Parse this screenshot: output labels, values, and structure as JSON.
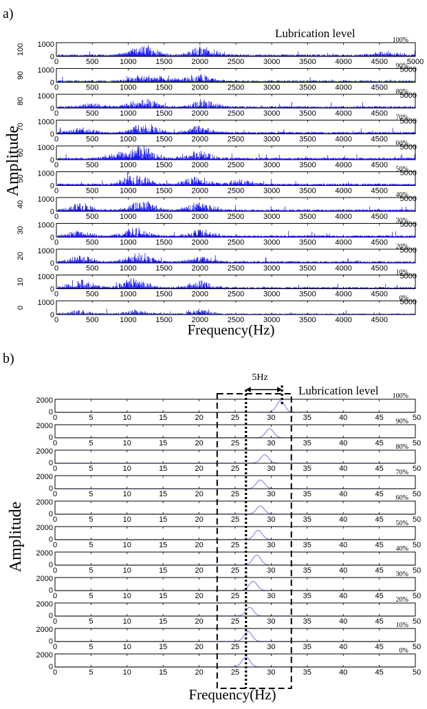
{
  "figure": {
    "panels": [
      {
        "label": "a)",
        "ylabel": "Amplitude",
        "xlabel": "Frequency(Hz)",
        "legend_title": "Lubrication level",
        "xlim": [
          0,
          5000
        ],
        "ylim": [
          0,
          1000
        ],
        "x_ticks": [
          0,
          500,
          1000,
          1500,
          2000,
          2500,
          3000,
          3500,
          4000,
          4500,
          5000
        ],
        "y_ticks": [
          0,
          1000
        ],
        "levels": [
          {
            "side_label": "100",
            "level_label": "100%"
          },
          {
            "side_label": "90",
            "level_label": "90%"
          },
          {
            "side_label": "80",
            "level_label": "80%"
          },
          {
            "side_label": "70",
            "level_label": "70%"
          },
          {
            "side_label": "60",
            "level_label": "60%"
          },
          {
            "side_label": "50",
            "level_label": "50%"
          },
          {
            "side_label": "40",
            "level_label": "40%"
          },
          {
            "side_label": "30",
            "level_label": "30%"
          },
          {
            "side_label": "20",
            "level_label": "20%"
          },
          {
            "side_label": "10",
            "level_label": "10%"
          },
          {
            "side_label": "0",
            "level_label": "0%"
          }
        ]
      },
      {
        "label": "b)",
        "ylabel": "Amplitude",
        "xlabel": "Frequency(Hz)",
        "legend_title": "Lubrication level",
        "annotation": "5Hz",
        "xlim": [
          0,
          50
        ],
        "ylim": [
          0,
          2000
        ],
        "x_ticks": [
          0,
          5,
          10,
          15,
          20,
          25,
          30,
          35,
          40,
          45,
          50
        ],
        "y_ticks": [
          0,
          2000
        ],
        "box_x_range": [
          22.5,
          32.8
        ],
        "dotted_line_x": 26.5,
        "arrow_x_range": [
          26.5,
          31.5
        ],
        "levels": [
          {
            "level_label": "100%"
          },
          {
            "level_label": "90%"
          },
          {
            "level_label": "80%"
          },
          {
            "level_label": "70%"
          },
          {
            "level_label": "60%"
          },
          {
            "level_label": "50%"
          },
          {
            "level_label": "40%"
          },
          {
            "level_label": "30%"
          },
          {
            "level_label": "20%"
          },
          {
            "level_label": "10%"
          },
          {
            "level_label": "0%"
          }
        ]
      }
    ]
  },
  "colors": {
    "spectrum": "#1a1aff",
    "peak": "#8a8ae8",
    "axes": "#000000",
    "annotation": "#000000"
  },
  "chart_data": [
    {
      "type": "bar",
      "title": "",
      "xlabel": "Frequency(Hz)",
      "ylabel": "Amplitude",
      "xlim": [
        0,
        5000
      ],
      "ylim": [
        0,
        1000
      ],
      "grid": false,
      "series": [
        {
          "name": "100%",
          "bands": [
            {
              "x": 1250,
              "value": 650
            },
            {
              "x": 2050,
              "value": 720
            },
            {
              "x": 1150,
              "value": 350
            },
            {
              "x": 4600,
              "value": 300
            }
          ],
          "baseline": 150
        },
        {
          "name": "90%",
          "bands": [
            {
              "x": 1200,
              "value": 450
            },
            {
              "x": 2000,
              "value": 500
            },
            {
              "x": 1500,
              "value": 300
            }
          ],
          "baseline": 140
        },
        {
          "name": "80%",
          "bands": [
            {
              "x": 1200,
              "value": 700
            },
            {
              "x": 2050,
              "value": 550
            },
            {
              "x": 500,
              "value": 300
            }
          ],
          "baseline": 140
        },
        {
          "name": "70%",
          "bands": [
            {
              "x": 1250,
              "value": 750
            },
            {
              "x": 2000,
              "value": 500
            },
            {
              "x": 350,
              "value": 350
            }
          ],
          "baseline": 150
        },
        {
          "name": "60%",
          "bands": [
            {
              "x": 1200,
              "value": 950
            },
            {
              "x": 2000,
              "value": 600
            },
            {
              "x": 900,
              "value": 500
            }
          ],
          "baseline": 150
        },
        {
          "name": "50%",
          "bands": [
            {
              "x": 1100,
              "value": 800
            },
            {
              "x": 1950,
              "value": 600
            },
            {
              "x": 2600,
              "value": 350
            }
          ],
          "baseline": 140
        },
        {
          "name": "40%",
          "bands": [
            {
              "x": 1200,
              "value": 700
            },
            {
              "x": 2000,
              "value": 550
            },
            {
              "x": 350,
              "value": 500
            }
          ],
          "baseline": 140
        },
        {
          "name": "30%",
          "bands": [
            {
              "x": 1100,
              "value": 650
            },
            {
              "x": 2000,
              "value": 500
            },
            {
              "x": 350,
              "value": 400
            }
          ],
          "baseline": 130
        },
        {
          "name": "20%",
          "bands": [
            {
              "x": 1150,
              "value": 700
            },
            {
              "x": 2000,
              "value": 450
            },
            {
              "x": 350,
              "value": 500
            }
          ],
          "baseline": 130
        },
        {
          "name": "10%",
          "bands": [
            {
              "x": 1100,
              "value": 750
            },
            {
              "x": 2000,
              "value": 500
            },
            {
              "x": 350,
              "value": 600
            }
          ],
          "baseline": 130
        },
        {
          "name": "0%",
          "bands": [
            {
              "x": 1100,
              "value": 350
            },
            {
              "x": 2000,
              "value": 300
            },
            {
              "x": 350,
              "value": 300
            }
          ],
          "baseline": 80
        }
      ]
    },
    {
      "type": "line",
      "title": "",
      "xlabel": "Frequency(Hz)",
      "ylabel": "Amplitude",
      "xlim": [
        0,
        50
      ],
      "ylim": [
        0,
        2000
      ],
      "grid": false,
      "series": [
        {
          "name": "100%",
          "peak_x": 31.3,
          "peak_y": 1750
        },
        {
          "name": "90%",
          "peak_x": 29.8,
          "peak_y": 1350
        },
        {
          "name": "80%",
          "peak_x": 29.1,
          "peak_y": 1250
        },
        {
          "name": "70%",
          "peak_x": 28.5,
          "peak_y": 1300
        },
        {
          "name": "60%",
          "peak_x": 28.5,
          "peak_y": 1200
        },
        {
          "name": "50%",
          "peak_x": 28.2,
          "peak_y": 1400
        },
        {
          "name": "40%",
          "peak_x": 28.0,
          "peak_y": 1500
        },
        {
          "name": "30%",
          "peak_x": 27.5,
          "peak_y": 1400
        },
        {
          "name": "20%",
          "peak_x": 27.0,
          "peak_y": 1300
        },
        {
          "name": "10%",
          "peak_x": 26.8,
          "peak_y": 1500
        },
        {
          "name": "0%",
          "peak_x": 26.5,
          "peak_y": 1500
        }
      ]
    }
  ]
}
